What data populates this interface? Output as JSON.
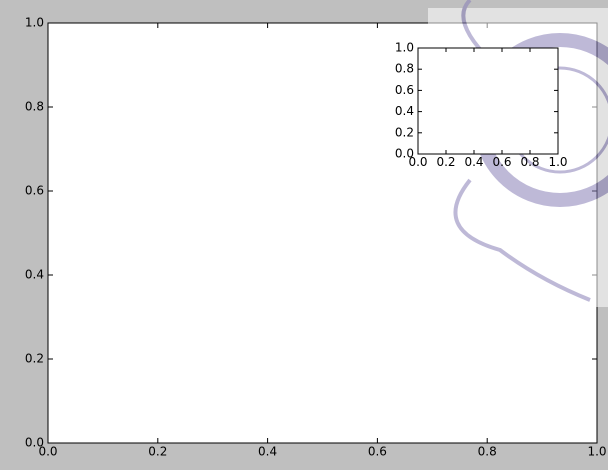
{
  "chart_data": [
    {
      "type": "line",
      "xlim": [
        0,
        1
      ],
      "ylim": [
        0,
        1
      ],
      "xticks": [
        {
          "value": 0,
          "label": "0.0"
        },
        0.2,
        0.4,
        0.6,
        0.8,
        {
          "value": 1,
          "label": "1.0"
        }
      ],
      "yticks": [
        {
          "value": 0,
          "label": "0.0"
        },
        0.2,
        0.4,
        0.6,
        0.8,
        {
          "value": 1,
          "label": "1.0"
        }
      ]
    },
    {
      "type": "line",
      "xlim": [
        0,
        1
      ],
      "ylim": [
        0,
        1
      ],
      "xticks": [
        {
          "value": 0,
          "label": "0.0"
        },
        0.2,
        0.4,
        0.6,
        0.8,
        {
          "value": 1,
          "label": "1.0"
        }
      ],
      "yticks": [
        {
          "value": 0,
          "label": "0.0"
        },
        0.2,
        0.4,
        0.6,
        0.8,
        {
          "value": 1,
          "label": "1.0"
        }
      ]
    }
  ]
}
